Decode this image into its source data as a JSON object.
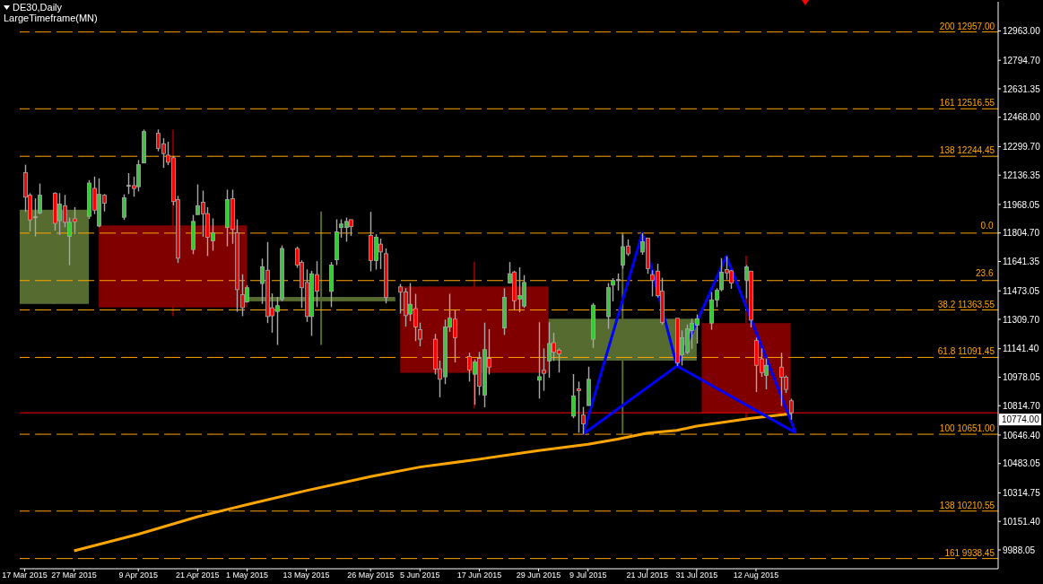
{
  "chart_data": {
    "type": "candlestick",
    "title": "DE30,Daily",
    "subtitle": "LargeTimeframe(MN)",
    "x": [
      "2015-03-17",
      "2015-03-18",
      "2015-03-19",
      "2015-03-20",
      "2015-03-23",
      "2015-03-24",
      "2015-03-25",
      "2015-03-26",
      "2015-03-27",
      "2015-03-30",
      "2015-03-31",
      "2015-04-01",
      "2015-04-02",
      "2015-04-06",
      "2015-04-07",
      "2015-04-08",
      "2015-04-09",
      "2015-04-10",
      "2015-04-13",
      "2015-04-14",
      "2015-04-15",
      "2015-04-16",
      "2015-04-17",
      "2015-04-20",
      "2015-04-21",
      "2015-04-22",
      "2015-04-23",
      "2015-04-24",
      "2015-04-27",
      "2015-04-28",
      "2015-04-29",
      "2015-04-30",
      "2015-05-01",
      "2015-05-04",
      "2015-05-05",
      "2015-05-06",
      "2015-05-07",
      "2015-05-08",
      "2015-05-11",
      "2015-05-12",
      "2015-05-13",
      "2015-05-14",
      "2015-05-15",
      "2015-05-18",
      "2015-05-19",
      "2015-05-20",
      "2015-05-21",
      "2015-05-22",
      "2015-05-26",
      "2015-05-27",
      "2015-05-28",
      "2015-05-29",
      "2015-06-01",
      "2015-06-02",
      "2015-06-03",
      "2015-06-04",
      "2015-06-05",
      "2015-06-08",
      "2015-06-09",
      "2015-06-10",
      "2015-06-11",
      "2015-06-12",
      "2015-06-15",
      "2015-06-16",
      "2015-06-17",
      "2015-06-18",
      "2015-06-19",
      "2015-06-22",
      "2015-06-23",
      "2015-06-24",
      "2015-06-25",
      "2015-06-26",
      "2015-06-29",
      "2015-06-30",
      "2015-07-01",
      "2015-07-02",
      "2015-07-03",
      "2015-07-06",
      "2015-07-07",
      "2015-07-08",
      "2015-07-09",
      "2015-07-10",
      "2015-07-13",
      "2015-07-14",
      "2015-07-15",
      "2015-07-16",
      "2015-07-17",
      "2015-07-20",
      "2015-07-21",
      "2015-07-22",
      "2015-07-23",
      "2015-07-24",
      "2015-07-27",
      "2015-07-28",
      "2015-07-29",
      "2015-07-30",
      "2015-07-31",
      "2015-08-03",
      "2015-08-04",
      "2015-08-05",
      "2015-08-06",
      "2015-08-07",
      "2015-08-10",
      "2015-08-11",
      "2015-08-12",
      "2015-08-13",
      "2015-08-14",
      "2015-08-17",
      "2015-08-18",
      "2015-08-19"
    ],
    "xlim": [
      "2015-03-16",
      "2015-09-30"
    ],
    "xticks": [
      {
        "value": "2015-03-17",
        "label": "17 Mar 2015"
      },
      {
        "value": "2015-03-27",
        "label": "27 Mar 2015"
      },
      {
        "value": "2015-04-09",
        "label": "9 Apr 2015"
      },
      {
        "value": "2015-04-21",
        "label": "21 Apr 2015"
      },
      {
        "value": "2015-05-01",
        "label": "1 May 2015"
      },
      {
        "value": "2015-05-13",
        "label": "13 May 2015"
      },
      {
        "value": "2015-05-26",
        "label": "26 May 2015"
      },
      {
        "value": "2015-06-05",
        "label": "5 Jun 2015"
      },
      {
        "value": "2015-06-17",
        "label": "17 Jun 2015"
      },
      {
        "value": "2015-06-29",
        "label": "29 Jun 2015"
      },
      {
        "value": "2015-07-09",
        "label": "9 Jul 2015"
      },
      {
        "value": "2015-07-21",
        "label": "21 Jul 2015"
      },
      {
        "value": "2015-07-31",
        "label": "31 Jul 2015"
      },
      {
        "value": "2015-08-12",
        "label": "12 Aug 2015"
      }
    ],
    "ylim": [
      9880,
      13130
    ],
    "yticks": [
      {
        "value": 12963,
        "label": "12963.00"
      },
      {
        "value": 12794.7,
        "label": "12794.70"
      },
      {
        "value": 12631.35,
        "label": "12631.35"
      },
      {
        "value": 12468,
        "label": "12468.00"
      },
      {
        "value": 12299.7,
        "label": "12299.70"
      },
      {
        "value": 12136.35,
        "label": "12136.35"
      },
      {
        "value": 11968.05,
        "label": "11968.05"
      },
      {
        "value": 11804.7,
        "label": "11804.70"
      },
      {
        "value": 11641.35,
        "label": "11641.35"
      },
      {
        "value": 11473.05,
        "label": "11473.05"
      },
      {
        "value": 11309.7,
        "label": "11309.70"
      },
      {
        "value": 11141.4,
        "label": "11141.40"
      },
      {
        "value": 10978.05,
        "label": "10978.05"
      },
      {
        "value": 10814.7,
        "label": "10814.70"
      },
      {
        "value": 10646.4,
        "label": "10646.40"
      },
      {
        "value": 10483.05,
        "label": "10483.05"
      },
      {
        "value": 10314.75,
        "label": "10314.75"
      },
      {
        "value": 10151.4,
        "label": "10151.40"
      },
      {
        "value": 9988.05,
        "label": "9988.05"
      }
    ],
    "series": [
      {
        "x": [
          "2015-03-23",
          "2015-04-16",
          "2015-05-16",
          "2015-06-16",
          "2015-07-16",
          "2015-08-10"
        ],
        "colors": [
          "#556b2f",
          "#800000",
          "#556b2f",
          "#800000",
          "#556b2f",
          "#800000"
        ],
        "ohlc": [
          [
            11398,
            11938,
            11398,
            11938
          ],
          [
            11848,
            12398,
            11328,
            11378
          ],
          [
            11413,
            11928,
            11163,
            11438
          ],
          [
            11498,
            11640,
            10800,
            11003
          ],
          [
            11073,
            11808,
            10653,
            11313
          ],
          [
            11288,
            11675,
            10738,
            10774
          ]
        ]
      },
      {
        "type": "line",
        "color": "#ffa500",
        "x": [
          "2015-03-27",
          "2015-04-09",
          "2015-04-21",
          "2015-05-01",
          "2015-05-13",
          "2015-05-26",
          "2015-06-05",
          "2015-06-17",
          "2015-06-29",
          "2015-07-09",
          "2015-07-15",
          "2015-07-21",
          "2015-07-27",
          "2015-07-31",
          "2015-08-11",
          "2015-08-19"
        ],
        "values": [
          9983,
          10078,
          10178,
          10248,
          10328,
          10408,
          10463,
          10508,
          10558,
          10593,
          10623,
          10658,
          10673,
          10698,
          10743,
          10768
        ]
      },
      {
        "type": "line",
        "color": "#0000ff",
        "x": [
          "2015-07-08",
          "2015-07-20",
          "2015-07-27",
          "2015-08-06",
          "2015-08-20"
        ],
        "values": [
          10651,
          11804,
          11043,
          11671,
          10660
        ]
      },
      {
        "type": "line",
        "color": "#0000ff",
        "x": [
          "2015-07-08",
          "2015-07-27",
          "2015-08-20"
        ],
        "values": [
          10651,
          11043,
          10660
        ]
      },
      {
        "color": "#a9a9a9",
        "colors": [
          "#ff0000",
          "#ff0000",
          "#a9a9a9",
          "#32cd32",
          "#ff0000",
          "#32cd32",
          "#ff0000",
          "#32cd32",
          "#ff0000",
          "#32cd32",
          "#ff0000",
          "#32cd32",
          "#ff0000",
          "#32cd32",
          "#a9a9a9",
          "#ff0000",
          "#32cd32",
          "#32cd32",
          "#ff0000",
          "#ff0000",
          "#ff0000",
          "#ff0000",
          "#ff0000",
          "#32cd32",
          "#32cd32",
          "#ff0000",
          "#ff0000",
          "#32cd32",
          "#32cd32",
          "#ff0000",
          "#ff0000",
          "#ff0000",
          "#32cd32",
          "#32cd32",
          "#ff0000",
          "#ff0000",
          "#32cd32",
          "#32cd32",
          "#ff0000",
          "#ff0000",
          "#ff0000",
          "#32cd32",
          "#ff0000",
          "#32cd32",
          "#32cd32",
          "#32cd32",
          "#32cd32",
          "#ff0000",
          "#ff0000",
          "#32cd32",
          "#ff0000",
          "#ff0000",
          "#ff0000",
          "#ff0000",
          "#32cd32",
          "#ff0000",
          "#ff0000",
          "#ff0000",
          "#ff0000",
          "#32cd32",
          "#32cd32",
          "#ff0000",
          "#ff0000",
          "#32cd32",
          "#ff0000",
          "#32cd32",
          "#ff0000",
          "#32cd32",
          "#32cd32",
          "#ff0000",
          "#32cd32",
          "#32cd32",
          "#32cd32",
          "#ff0000",
          "#32cd32",
          "#ff0000",
          "#ff0000",
          "#32cd32",
          "#ff0000",
          "#ff0000",
          "#32cd32",
          "#32cd32",
          "#32cd32",
          "#32cd32",
          "#a9a9a9",
          "#32cd32",
          "#ff0000",
          "#32cd32",
          "#ff0000",
          "#ff0000",
          "#ff0000",
          "#ff0000",
          "#ff0000",
          "#32cd32",
          "#32cd32",
          "#32cd32",
          "#32cd32",
          "#32cd32",
          "#32cd32",
          "#32cd32",
          "#ff0000",
          "#ff0000",
          "#32cd32",
          "#ff0000",
          "#ff0000",
          "#ff0000",
          "#32cd32",
          "#ff0000",
          "#ff0000",
          "#ff0000"
        ],
        "ohlc": [
          [
            12151,
            12196,
            11925,
            12010
          ],
          [
            12021,
            12033,
            11813,
            11880
          ],
          [
            11895,
            12003,
            11785,
            11895
          ],
          [
            11920,
            12088,
            11913,
            12021
          ],
          [
            12033,
            12038,
            11818,
            11860
          ],
          [
            11875,
            12033,
            11793,
            11971
          ],
          [
            11961,
            12023,
            11838,
            11866
          ],
          [
            11785,
            11893,
            11620,
            11866
          ],
          [
            11886,
            11953,
            11798,
            11870
          ],
          [
            11900,
            12108,
            11885,
            12091
          ],
          [
            12061,
            12128,
            11913,
            11936
          ],
          [
            11845,
            12118,
            11838,
            12026
          ],
          [
            12021,
            12028,
            11928,
            11975
          ],
          [
            11895,
            12026,
            11880,
            12006
          ],
          [
            12075,
            12148,
            12028,
            12075
          ],
          [
            12076,
            12128,
            12013,
            12060
          ],
          [
            12070,
            12223,
            12043,
            12196
          ],
          [
            12206,
            12398,
            12205,
            12386
          ],
          [
            12376,
            12398,
            12273,
            12290
          ],
          [
            12316,
            12348,
            12178,
            12260
          ],
          [
            12251,
            12328,
            12193,
            12210
          ],
          [
            12236,
            12246,
            11963,
            11985
          ],
          [
            11996,
            12018,
            11633,
            11660
          ],
          [
            11710,
            11908,
            11683,
            11871
          ],
          [
            11910,
            12083,
            11910,
            11961
          ],
          [
            11981,
            12048,
            11783,
            11915
          ],
          [
            11916,
            11953,
            11673,
            11780
          ],
          [
            11760,
            11888,
            11703,
            11806
          ],
          [
            11836,
            12053,
            11728,
            11996
          ],
          [
            12001,
            12053,
            11743,
            11825
          ],
          [
            11806,
            11883,
            11353,
            11480
          ],
          [
            11451,
            11568,
            11328,
            11376
          ],
          [
            11410,
            11505,
            11405,
            11491
          ],
          [
            11515,
            11658,
            11398,
            11611
          ],
          [
            11591,
            11753,
            11288,
            11326
          ],
          [
            11376,
            11458,
            11233,
            11330
          ],
          [
            11355,
            11438,
            11163,
            11388
          ],
          [
            11426,
            11733,
            11413,
            11716
          ],
          [
            11716,
            11726,
            11605,
            11621
          ],
          [
            11636,
            11648,
            11375,
            11491
          ],
          [
            11521,
            11596,
            11295,
            11326
          ],
          [
            11326,
            11588,
            11215,
            11571
          ],
          [
            11566,
            11643,
            11380,
            11471
          ],
          [
            11470,
            11638,
            11380,
            11621
          ],
          [
            11651,
            11883,
            11620,
            11811
          ],
          [
            11836,
            11883,
            11778,
            11856
          ],
          [
            11836,
            11893,
            11755,
            11871
          ],
          [
            11881,
            11881,
            11788,
            11841
          ],
          [
            11791,
            11926,
            11585,
            11646
          ],
          [
            11646,
            11798,
            11595,
            11781
          ],
          [
            11741,
            11773,
            11598,
            11696
          ],
          [
            11686,
            11716,
            11401,
            11436
          ],
          [
            11496,
            11513,
            11343,
            11466
          ],
          [
            11466,
            11488,
            11268,
            11331
          ],
          [
            11340,
            11518,
            11300,
            11396
          ],
          [
            11371,
            11456,
            11185,
            11266
          ],
          [
            11251,
            11291,
            11155,
            11196
          ],
          [
            11196,
            11226,
            10993,
            11025
          ],
          [
            11026,
            11073,
            10863,
            10966
          ],
          [
            10980,
            11308,
            10938,
            11266
          ],
          [
            11265,
            11456,
            11238,
            11316
          ],
          [
            11311,
            11366,
            11063,
            11205
          ],
          [
            11096,
            11118,
            10953,
            11020
          ],
          [
            10995,
            11081,
            10820,
            11066
          ],
          [
            11086,
            11123,
            10875,
            10926
          ],
          [
            10876,
            11291,
            10805,
            11136
          ],
          [
            11086,
            11253,
            10993,
            11036
          ],
          [
            11260,
            11488,
            11220,
            11436
          ],
          [
            11518,
            11638,
            11515,
            11571
          ],
          [
            11581,
            11588,
            11360,
            11416
          ],
          [
            11426,
            11608,
            11350,
            11446
          ],
          [
            11386,
            11563,
            11375,
            11521
          ],
          [
            10961,
            11293,
            10855,
            10981
          ],
          [
            11018,
            11143,
            10900,
            11000
          ],
          [
            11071,
            11293,
            10975,
            11171
          ],
          [
            11176,
            11233,
            11071,
            11121
          ],
          [
            11133,
            11143,
            11005,
            11111
          ],
          [
            10755,
            10996,
            10743,
            10871
          ],
          [
            10911,
            10953,
            10660,
            10901
          ],
          [
            10761,
            10808,
            10651,
            10711
          ],
          [
            10816,
            11038,
            10813,
            10966
          ],
          [
            11196,
            11403,
            11146,
            11391
          ],
          [
            11325,
            11518,
            11255,
            11491
          ],
          [
            11506,
            11546,
            11413,
            11533
          ],
          [
            11535,
            11573,
            11475,
            11535
          ],
          [
            11621,
            11795,
            11601,
            11726
          ],
          [
            11730,
            11768,
            11673,
            11685
          ],
          [
            11696,
            11804,
            11680,
            11755
          ],
          [
            11775,
            11778,
            11571,
            11601
          ],
          [
            11566,
            11591,
            11441,
            11533
          ],
          [
            11586,
            11628,
            11435,
            11445
          ],
          [
            11471,
            11548,
            11280,
            11291
          ],
          [
            11316,
            11316,
            11043,
            11060
          ],
          [
            11105,
            11246,
            11045,
            11205
          ],
          [
            11121,
            11280,
            11110,
            11255
          ],
          [
            11246,
            11313,
            11141,
            11288
          ],
          [
            11276,
            11338,
            11171,
            11313
          ],
          [
            11288,
            11466,
            11250,
            11421
          ],
          [
            11421,
            11488,
            11380,
            11476
          ],
          [
            11480,
            11661,
            11471,
            11580
          ],
          [
            11595,
            11671,
            11538,
            11576
          ],
          [
            11588,
            11593,
            11485,
            11518
          ],
          [
            11535,
            11621,
            11430,
            11611
          ],
          [
            11586,
            11586,
            11263,
            11305
          ],
          [
            11188,
            11205,
            10893,
            11046
          ],
          [
            11083,
            11143,
            10980,
            11005
          ],
          [
            10988,
            11085,
            10908,
            11046
          ],
          [
            11036,
            11118,
            10813,
            10978
          ],
          [
            10978,
            10988,
            10888,
            10908
          ],
          [
            10843,
            10855,
            10735,
            10774
          ]
        ]
      }
    ],
    "ref_lines": [
      {
        "axis": "y",
        "value": 12957,
        "label": "200 12957.00",
        "color": "#ffa500",
        "line_style": "dashed"
      },
      {
        "axis": "y",
        "value": 12516.55,
        "label": "161 12516.55",
        "color": "#ffa500",
        "line_style": "dashed"
      },
      {
        "axis": "y",
        "value": 12244.45,
        "label": "138 12244.45",
        "color": "#ffa500",
        "line_style": "dashed"
      },
      {
        "axis": "y",
        "value": 11804,
        "color": "#ffa500",
        "line_style": "dashed"
      },
      {
        "axis": "y",
        "value": 11532,
        "color": "#ffa500",
        "line_style": "dashed"
      },
      {
        "axis": "y",
        "value": 11363.55,
        "label": "38.2 11363.55",
        "color": "#ffa500",
        "line_style": "dashed"
      },
      {
        "axis": "y",
        "value": 11091.45,
        "label": "61.8 11091.45",
        "color": "#ffa500",
        "line_style": "dashed"
      },
      {
        "axis": "y",
        "value": 10651,
        "label": "100 10651.00",
        "color": "#ffa500",
        "line_style": "dashed"
      },
      {
        "axis": "y",
        "value": 10210.55,
        "label": "138 10210.55",
        "color": "#ffa500",
        "line_style": "dashed"
      },
      {
        "axis": "y",
        "value": 9938.45,
        "label": "161 9938.45",
        "color": "#ffa500",
        "line_style": "dashed"
      },
      {
        "axis": "y",
        "value": 10774,
        "label": "10774.00",
        "color": "#ff0000",
        "line_style": "solid"
      }
    ],
    "annotations": [
      {
        "text": "0.0",
        "x": "2015-09-29",
        "y": 11804
      },
      {
        "text": "23.6",
        "x": "2015-09-29",
        "y": 11532
      }
    ]
  }
}
